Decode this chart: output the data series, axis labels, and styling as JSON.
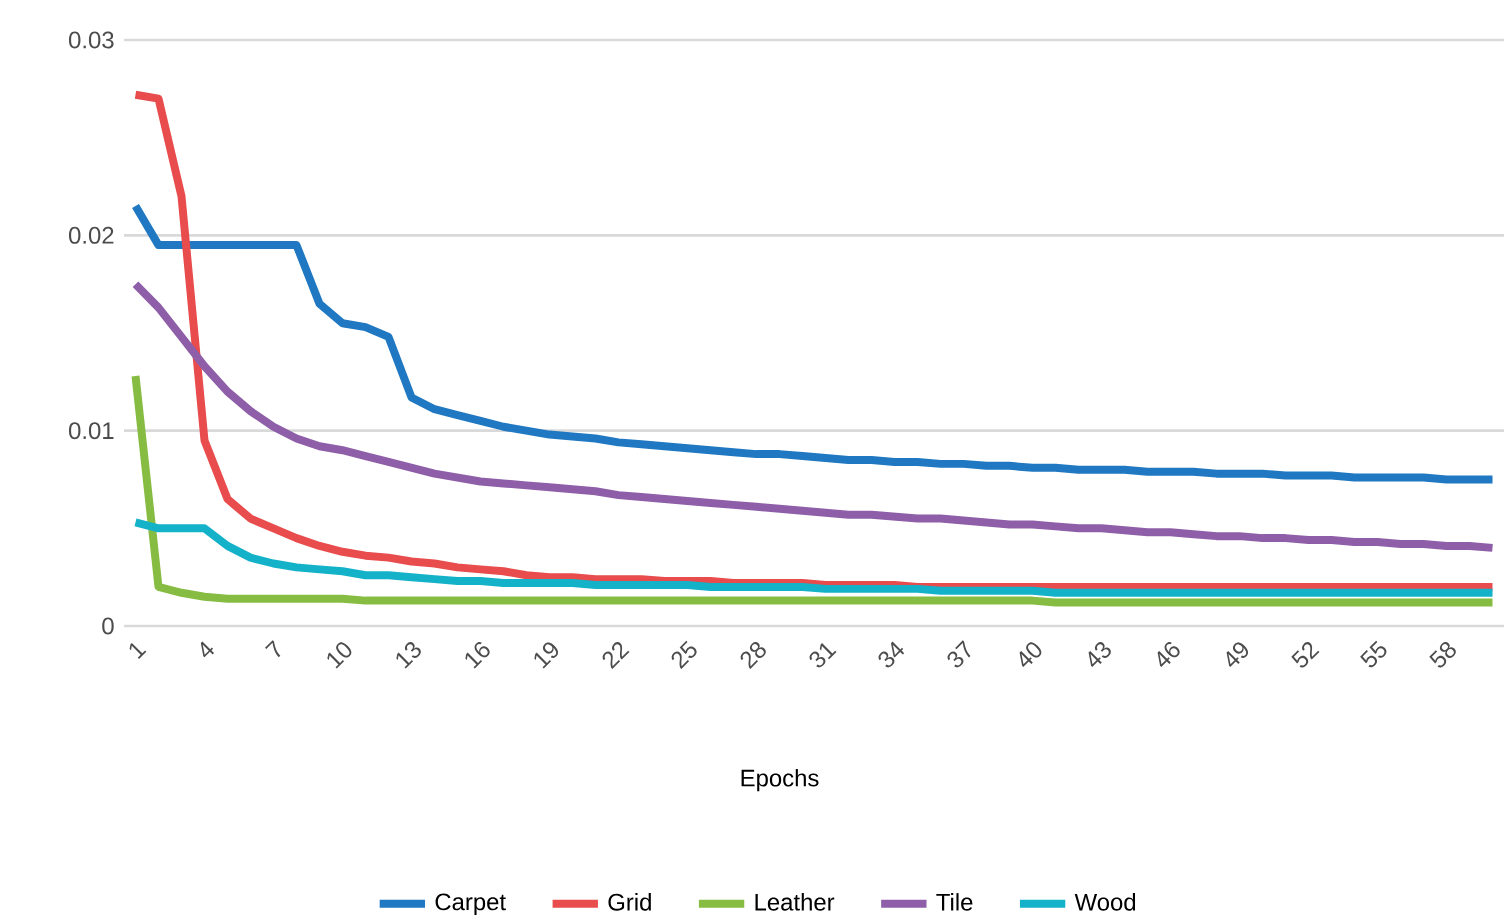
{
  "chart_data": {
    "type": "line",
    "xlabel": "Epochs",
    "categories": [
      "1",
      null,
      null,
      "4",
      null,
      null,
      "7",
      null,
      null,
      "10",
      null,
      null,
      "13",
      null,
      null,
      "16",
      null,
      null,
      "19",
      null,
      null,
      "22",
      null,
      null,
      "25",
      null,
      null,
      "28",
      null,
      null,
      "31",
      null,
      null,
      "34",
      null,
      null,
      "37",
      null,
      null,
      "40",
      null,
      null,
      "43",
      null,
      null,
      "46",
      null,
      null,
      "49",
      null,
      null,
      "52",
      null,
      null,
      "55",
      null,
      null,
      "58",
      null,
      null
    ],
    "series": [
      {
        "name": "Carpet",
        "color": "#1f78c1",
        "values": [
          0.0215,
          0.0195,
          0.0195,
          0.0195,
          0.0195,
          0.0195,
          0.0195,
          0.0195,
          0.0165,
          0.0155,
          0.0153,
          0.0148,
          0.0117,
          0.0111,
          0.0108,
          0.0105,
          0.0102,
          0.01,
          0.0098,
          0.0097,
          0.0096,
          0.0094,
          0.0093,
          0.0092,
          0.0091,
          0.009,
          0.0089,
          0.0088,
          0.0088,
          0.0087,
          0.0086,
          0.0085,
          0.0085,
          0.0084,
          0.0084,
          0.0083,
          0.0083,
          0.0082,
          0.0082,
          0.0081,
          0.0081,
          0.008,
          0.008,
          0.008,
          0.0079,
          0.0079,
          0.0079,
          0.0078,
          0.0078,
          0.0078,
          0.0077,
          0.0077,
          0.0077,
          0.0076,
          0.0076,
          0.0076,
          0.0076,
          0.0075,
          0.0075,
          0.0075
        ]
      },
      {
        "name": "Grid",
        "color": "#e84c4c",
        "values": [
          0.0272,
          0.027,
          0.022,
          0.0095,
          0.0065,
          0.0055,
          0.005,
          0.0045,
          0.0041,
          0.0038,
          0.0036,
          0.0035,
          0.0033,
          0.0032,
          0.003,
          0.0029,
          0.0028,
          0.0026,
          0.0025,
          0.0025,
          0.0024,
          0.0024,
          0.0024,
          0.0023,
          0.0023,
          0.0023,
          0.0022,
          0.0022,
          0.0022,
          0.0022,
          0.0021,
          0.0021,
          0.0021,
          0.0021,
          0.002,
          0.002,
          0.002,
          0.002,
          0.002,
          0.002,
          0.002,
          0.002,
          0.002,
          0.002,
          0.002,
          0.002,
          0.002,
          0.002,
          0.002,
          0.002,
          0.002,
          0.002,
          0.002,
          0.002,
          0.002,
          0.002,
          0.002,
          0.002,
          0.002,
          0.002
        ]
      },
      {
        "name": "Leather",
        "color": "#86bc42",
        "values": [
          0.0128,
          0.002,
          0.0017,
          0.0015,
          0.0014,
          0.0014,
          0.0014,
          0.0014,
          0.0014,
          0.0014,
          0.0013,
          0.0013,
          0.0013,
          0.0013,
          0.0013,
          0.0013,
          0.0013,
          0.0013,
          0.0013,
          0.0013,
          0.0013,
          0.0013,
          0.0013,
          0.0013,
          0.0013,
          0.0013,
          0.0013,
          0.0013,
          0.0013,
          0.0013,
          0.0013,
          0.0013,
          0.0013,
          0.0013,
          0.0013,
          0.0013,
          0.0013,
          0.0013,
          0.0013,
          0.0013,
          0.0012,
          0.0012,
          0.0012,
          0.0012,
          0.0012,
          0.0012,
          0.0012,
          0.0012,
          0.0012,
          0.0012,
          0.0012,
          0.0012,
          0.0012,
          0.0012,
          0.0012,
          0.0012,
          0.0012,
          0.0012,
          0.0012,
          0.0012
        ]
      },
      {
        "name": "Tile",
        "color": "#8e5fa8",
        "values": [
          0.0175,
          0.0163,
          0.0148,
          0.0133,
          0.012,
          0.011,
          0.0102,
          0.0096,
          0.0092,
          0.009,
          0.0087,
          0.0084,
          0.0081,
          0.0078,
          0.0076,
          0.0074,
          0.0073,
          0.0072,
          0.0071,
          0.007,
          0.0069,
          0.0067,
          0.0066,
          0.0065,
          0.0064,
          0.0063,
          0.0062,
          0.0061,
          0.006,
          0.0059,
          0.0058,
          0.0057,
          0.0057,
          0.0056,
          0.0055,
          0.0055,
          0.0054,
          0.0053,
          0.0052,
          0.0052,
          0.0051,
          0.005,
          0.005,
          0.0049,
          0.0048,
          0.0048,
          0.0047,
          0.0046,
          0.0046,
          0.0045,
          0.0045,
          0.0044,
          0.0044,
          0.0043,
          0.0043,
          0.0042,
          0.0042,
          0.0041,
          0.0041,
          0.004
        ]
      },
      {
        "name": "Wood",
        "color": "#13b2c9",
        "values": [
          0.0053,
          0.005,
          0.005,
          0.005,
          0.0041,
          0.0035,
          0.0032,
          0.003,
          0.0029,
          0.0028,
          0.0026,
          0.0026,
          0.0025,
          0.0024,
          0.0023,
          0.0023,
          0.0022,
          0.0022,
          0.0022,
          0.0022,
          0.0021,
          0.0021,
          0.0021,
          0.0021,
          0.0021,
          0.002,
          0.002,
          0.002,
          0.002,
          0.002,
          0.0019,
          0.0019,
          0.0019,
          0.0019,
          0.0019,
          0.0018,
          0.0018,
          0.0018,
          0.0018,
          0.0018,
          0.0017,
          0.0017,
          0.0017,
          0.0017,
          0.0017,
          0.0017,
          0.0017,
          0.0017,
          0.0017,
          0.0017,
          0.0017,
          0.0017,
          0.0017,
          0.0017,
          0.0017,
          0.0017,
          0.0017,
          0.0017,
          0.0017,
          0.0017
        ]
      }
    ],
    "ylim": [
      0,
      0.03
    ],
    "yticks": [
      0,
      0.01,
      0.02,
      0.03
    ],
    "grid": "y",
    "legend": "bottom",
    "line_style": "solid",
    "marker": "none"
  }
}
